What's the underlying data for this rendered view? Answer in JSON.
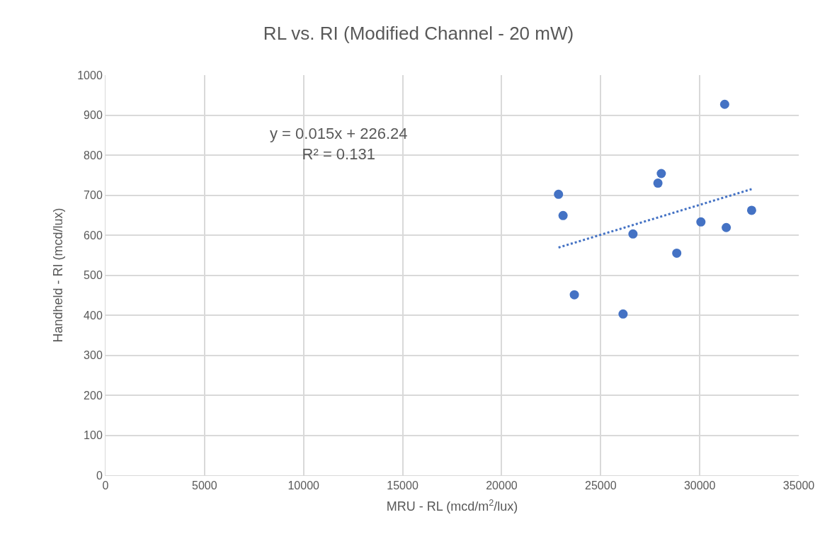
{
  "chart_data": {
    "type": "scatter",
    "title": "RL vs. RI (Modified Channel - 20 mW)",
    "xlabel": "MRU - RL (mcd/m$^{2}$/lux)",
    "ylabel": "Handheld - RI (mcd/lux)",
    "series": [
      {
        "color": "#4472c4",
        "marker": "circle",
        "x": [
          31260,
          28060,
          27890,
          22870,
          23100,
          32620,
          30060,
          31340,
          26630,
          28840,
          23670,
          26130
        ],
        "values": [
          927,
          754,
          730,
          702,
          649,
          662,
          633,
          619,
          603,
          555,
          451,
          403
        ]
      },
      {
        "type": "line",
        "color": "#4472c4",
        "line_style": "dotted",
        "marker": "none",
        "x": [
          22870,
          32620
        ],
        "values": [
          569,
          715
        ]
      }
    ],
    "annotations": [
      "y = 0.015x + 226.24\nR² = 0.131"
    ],
    "xlim": [
      0,
      35000
    ],
    "xticks": [
      0,
      5000,
      10000,
      15000,
      20000,
      25000,
      30000,
      35000
    ],
    "ylim": [
      0,
      1000
    ],
    "yticks": [
      0,
      100,
      200,
      300,
      400,
      500,
      600,
      700,
      800,
      900,
      1000
    ],
    "grid": true
  }
}
